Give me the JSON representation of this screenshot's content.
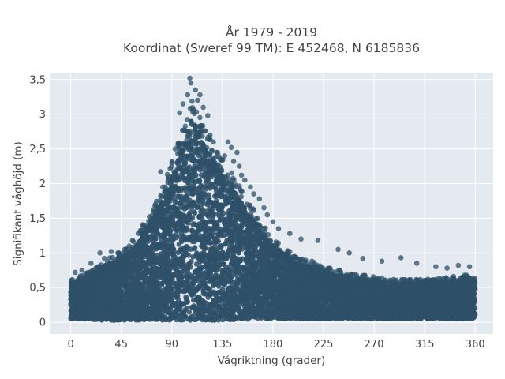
{
  "chart_data": {
    "type": "scatter",
    "title": "År 1979 - 2019",
    "subtitle": "Koordinat (Sweref 99 TM): E 452468, N 6185836",
    "xlabel": "Vågriktning (grader)",
    "ylabel": "Signifikant våghöjd (m)",
    "xlim": [
      -18,
      376
    ],
    "ylim": [
      -0.17,
      3.6
    ],
    "x_ticks": [
      0,
      45,
      90,
      135,
      180,
      225,
      270,
      315,
      360
    ],
    "x_tick_labels": [
      "0",
      "45",
      "90",
      "135",
      "180",
      "225",
      "270",
      "315",
      "360"
    ],
    "y_ticks": [
      0,
      0.5,
      1,
      1.5,
      2,
      2.5,
      3,
      3.5
    ],
    "y_tick_labels": [
      "0",
      "0,5",
      "1",
      "1,5",
      "2",
      "2,5",
      "3",
      "3,5"
    ],
    "grid": true,
    "marker_color": "#2e5068",
    "plot_background": "#e5e9f0",
    "envelope": {
      "x": [
        0,
        10,
        20,
        30,
        40,
        50,
        60,
        70,
        80,
        90,
        100,
        105,
        110,
        115,
        120,
        130,
        140,
        150,
        160,
        170,
        180,
        190,
        200,
        210,
        220,
        230,
        240,
        250,
        260,
        270,
        280,
        290,
        300,
        310,
        320,
        330,
        340,
        350,
        360
      ],
      "lower": [
        0.05,
        0.05,
        0.04,
        0.03,
        0.03,
        0.03,
        0.03,
        0.03,
        0.03,
        0.03,
        0.03,
        0.03,
        0.03,
        0.03,
        0.03,
        0.03,
        0.03,
        0.04,
        0.04,
        0.05,
        0.05,
        0.05,
        0.05,
        0.05,
        0.05,
        0.05,
        0.05,
        0.05,
        0.05,
        0.05,
        0.05,
        0.05,
        0.05,
        0.05,
        0.05,
        0.05,
        0.05,
        0.05,
        0.05
      ],
      "upper": [
        0.55,
        0.62,
        0.7,
        0.82,
        0.9,
        0.98,
        1.15,
        1.45,
        1.7,
        2.1,
        2.55,
        2.85,
        2.95,
        2.8,
        2.5,
        2.3,
        2.05,
        1.8,
        1.55,
        1.3,
        1.1,
        0.98,
        0.88,
        0.82,
        0.78,
        0.72,
        0.68,
        0.64,
        0.62,
        0.6,
        0.58,
        0.57,
        0.56,
        0.56,
        0.57,
        0.58,
        0.6,
        0.62,
        0.6
      ]
    },
    "outliers": [
      {
        "x": 106,
        "y": 3.52
      },
      {
        "x": 107,
        "y": 3.45
      },
      {
        "x": 111,
        "y": 3.35
      },
      {
        "x": 104,
        "y": 3.28
      },
      {
        "x": 113,
        "y": 3.2
      },
      {
        "x": 100,
        "y": 3.15
      },
      {
        "x": 118,
        "y": 3.1
      },
      {
        "x": 97,
        "y": 3.02
      },
      {
        "x": 115,
        "y": 3.28
      },
      {
        "x": 122,
        "y": 2.98
      },
      {
        "x": 124,
        "y": 2.7
      },
      {
        "x": 127,
        "y": 2.6
      },
      {
        "x": 140,
        "y": 2.6
      },
      {
        "x": 143,
        "y": 2.52
      },
      {
        "x": 148,
        "y": 2.45
      },
      {
        "x": 145,
        "y": 2.32
      },
      {
        "x": 150,
        "y": 2.25
      },
      {
        "x": 152,
        "y": 2.12
      },
      {
        "x": 155,
        "y": 2.05
      },
      {
        "x": 160,
        "y": 1.95
      },
      {
        "x": 163,
        "y": 1.85
      },
      {
        "x": 168,
        "y": 1.78
      },
      {
        "x": 172,
        "y": 1.65
      },
      {
        "x": 175,
        "y": 1.55
      },
      {
        "x": 180,
        "y": 1.45
      },
      {
        "x": 185,
        "y": 1.35
      },
      {
        "x": 195,
        "y": 1.28
      },
      {
        "x": 205,
        "y": 1.2
      },
      {
        "x": 220,
        "y": 1.18
      },
      {
        "x": 238,
        "y": 1.05
      },
      {
        "x": 248,
        "y": 1.0
      },
      {
        "x": 260,
        "y": 0.92
      },
      {
        "x": 277,
        "y": 0.88
      },
      {
        "x": 294,
        "y": 0.93
      },
      {
        "x": 308,
        "y": 0.85
      },
      {
        "x": 325,
        "y": 0.8
      },
      {
        "x": 335,
        "y": 0.78
      },
      {
        "x": 345,
        "y": 0.82
      },
      {
        "x": 355,
        "y": 0.8
      },
      {
        "x": 80,
        "y": 2.17
      },
      {
        "x": 86,
        "y": 2.13
      },
      {
        "x": 82,
        "y": 1.95
      },
      {
        "x": 75,
        "y": 1.68
      },
      {
        "x": 70,
        "y": 1.52
      },
      {
        "x": 65,
        "y": 1.4
      },
      {
        "x": 60,
        "y": 1.28
      },
      {
        "x": 55,
        "y": 1.18
      },
      {
        "x": 48,
        "y": 1.05
      },
      {
        "x": 42,
        "y": 1.0
      },
      {
        "x": 36,
        "y": 1.02
      },
      {
        "x": 26,
        "y": 1.0
      },
      {
        "x": 18,
        "y": 0.85
      },
      {
        "x": 10,
        "y": 0.75
      },
      {
        "x": 4,
        "y": 0.72
      },
      {
        "x": 30,
        "y": 0.92
      },
      {
        "x": 90,
        "y": 2.3
      },
      {
        "x": 93,
        "y": 2.5
      },
      {
        "x": 133,
        "y": 2.35
      },
      {
        "x": 137,
        "y": 2.4
      },
      {
        "x": 130,
        "y": 2.45
      }
    ]
  }
}
